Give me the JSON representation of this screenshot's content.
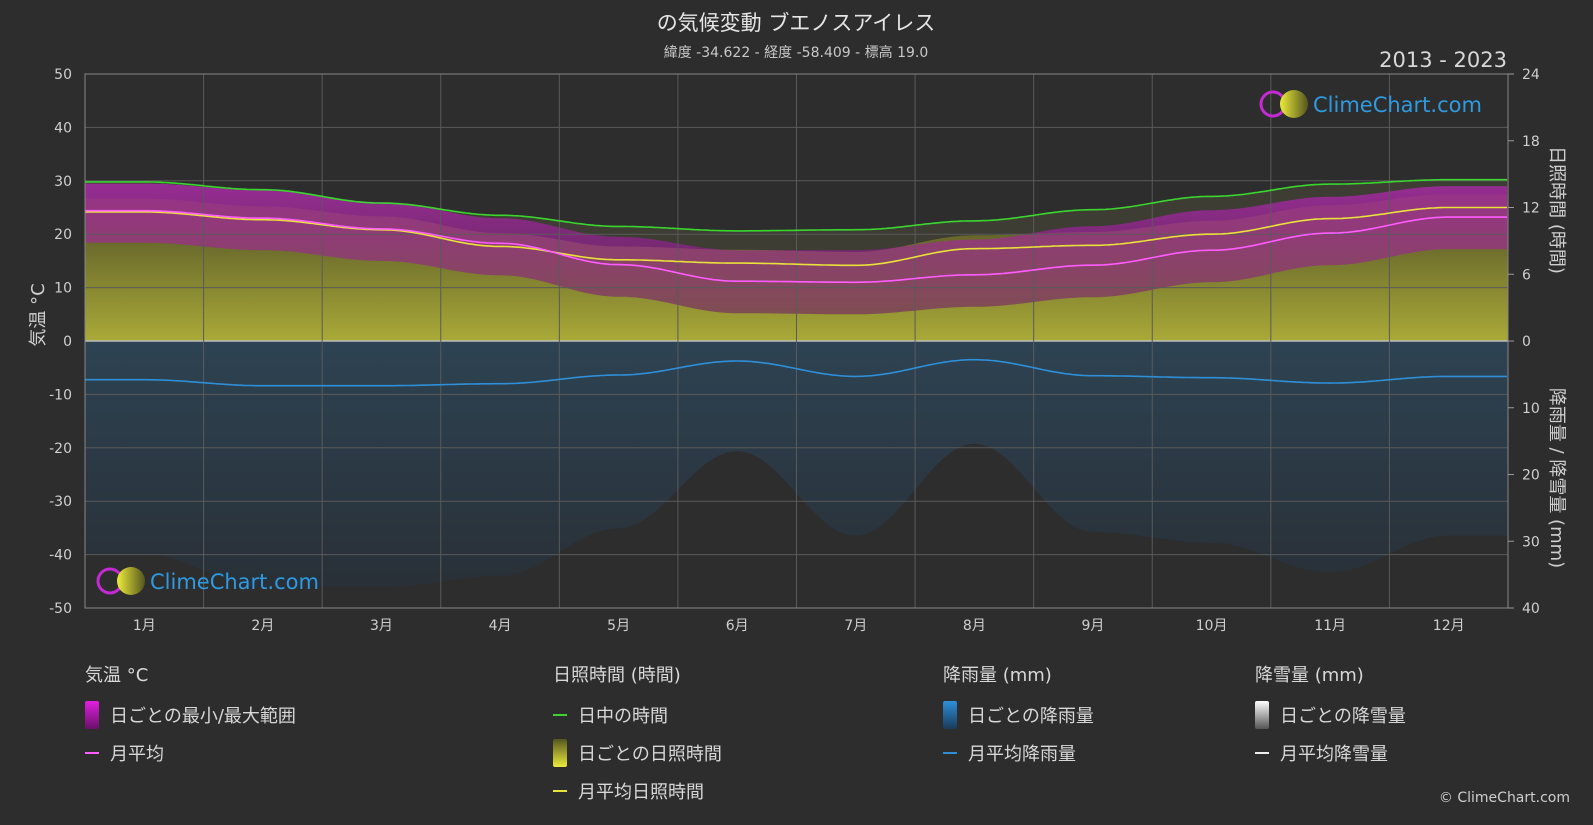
{
  "header": {
    "title": "の気候変動 ブエノスアイレス",
    "subtitle": "緯度 -34.622 - 経度 -58.409 - 標高 19.0",
    "period": "2013 - 2023",
    "copyright": "© ClimeChart.com"
  },
  "logo": {
    "text": "ClimeChart.com"
  },
  "axes": {
    "left_label": "気温 °C",
    "right_top_label": "日照時間 (時間)",
    "right_bottom_label": "降雨量 / 降雪量 (mm)"
  },
  "chart_data": {
    "type": "line",
    "categories": [
      "1月",
      "2月",
      "3月",
      "4月",
      "5月",
      "6月",
      "7月",
      "8月",
      "9月",
      "10月",
      "11月",
      "12月"
    ],
    "temp_axis": {
      "range": [
        -50,
        50
      ],
      "ticks": [
        50,
        40,
        30,
        20,
        10,
        0,
        -10,
        -20,
        -30,
        -40,
        -50
      ]
    },
    "sun_axis": {
      "range": [
        0,
        24
      ],
      "ticks": [
        24,
        18,
        12,
        6,
        0
      ]
    },
    "rain_axis": {
      "range": [
        0,
        40
      ],
      "ticks": [
        0,
        10,
        20,
        30,
        40
      ]
    },
    "series": [
      {
        "name": "日中の時間",
        "axis": "sun",
        "color": "#3ad62e",
        "values": [
          14.3,
          13.6,
          12.4,
          11.3,
          10.3,
          9.9,
          10.0,
          10.8,
          11.8,
          13.0,
          14.1,
          14.5
        ]
      },
      {
        "name": "月平均日照時間",
        "axis": "sun",
        "color": "#e8e23a",
        "values": [
          11.6,
          10.9,
          10.0,
          8.5,
          7.3,
          7.0,
          6.8,
          8.3,
          8.6,
          9.6,
          11.0,
          12.0
        ]
      },
      {
        "name": "月平均",
        "axis": "temp",
        "color": "#ff5cff",
        "values": [
          24.4,
          23.0,
          21.0,
          18.3,
          14.3,
          11.2,
          11.0,
          12.4,
          14.2,
          17.0,
          20.2,
          23.2
        ]
      },
      {
        "name": "日ごとの最小/最大範囲 (max)",
        "axis": "temp",
        "color": "#c020c0",
        "values": [
          29.5,
          28.2,
          26.0,
          23.0,
          19.5,
          17.0,
          17.0,
          19.0,
          21.5,
          24.5,
          27.0,
          29.0
        ]
      },
      {
        "name": "月平均降雨量",
        "axis": "rain",
        "color": "#2e8fd8",
        "values": [
          5.8,
          6.7,
          6.7,
          6.4,
          5.1,
          3.0,
          5.3,
          2.8,
          5.2,
          5.5,
          6.3,
          5.3
        ]
      }
    ]
  },
  "legend": {
    "groups": [
      {
        "title": "気温 °C",
        "items": [
          {
            "label": "日ごとの最小/最大範囲",
            "kind": "swatch",
            "color": "#e020e0"
          },
          {
            "label": "月平均",
            "kind": "line",
            "color": "#ff5cff"
          }
        ]
      },
      {
        "title": "日照時間 (時間)",
        "items": [
          {
            "label": "日中の時間",
            "kind": "line",
            "color": "#3ad62e"
          },
          {
            "label": "日ごとの日照時間",
            "kind": "swatch",
            "color": "#c8c830"
          },
          {
            "label": "月平均日照時間",
            "kind": "line",
            "color": "#e8e23a"
          }
        ]
      },
      {
        "title": "降雨量 (mm)",
        "items": [
          {
            "label": "日ごとの降雨量",
            "kind": "swatch",
            "color": "#2e8fd8"
          },
          {
            "label": "月平均降雨量",
            "kind": "line",
            "color": "#2e8fd8"
          }
        ]
      },
      {
        "title": "降雪量 (mm)",
        "items": [
          {
            "label": "日ごとの降雪量",
            "kind": "swatch",
            "color": "#dddddd"
          },
          {
            "label": "月平均降雪量",
            "kind": "line",
            "color": "#eeeeee"
          }
        ]
      }
    ]
  }
}
